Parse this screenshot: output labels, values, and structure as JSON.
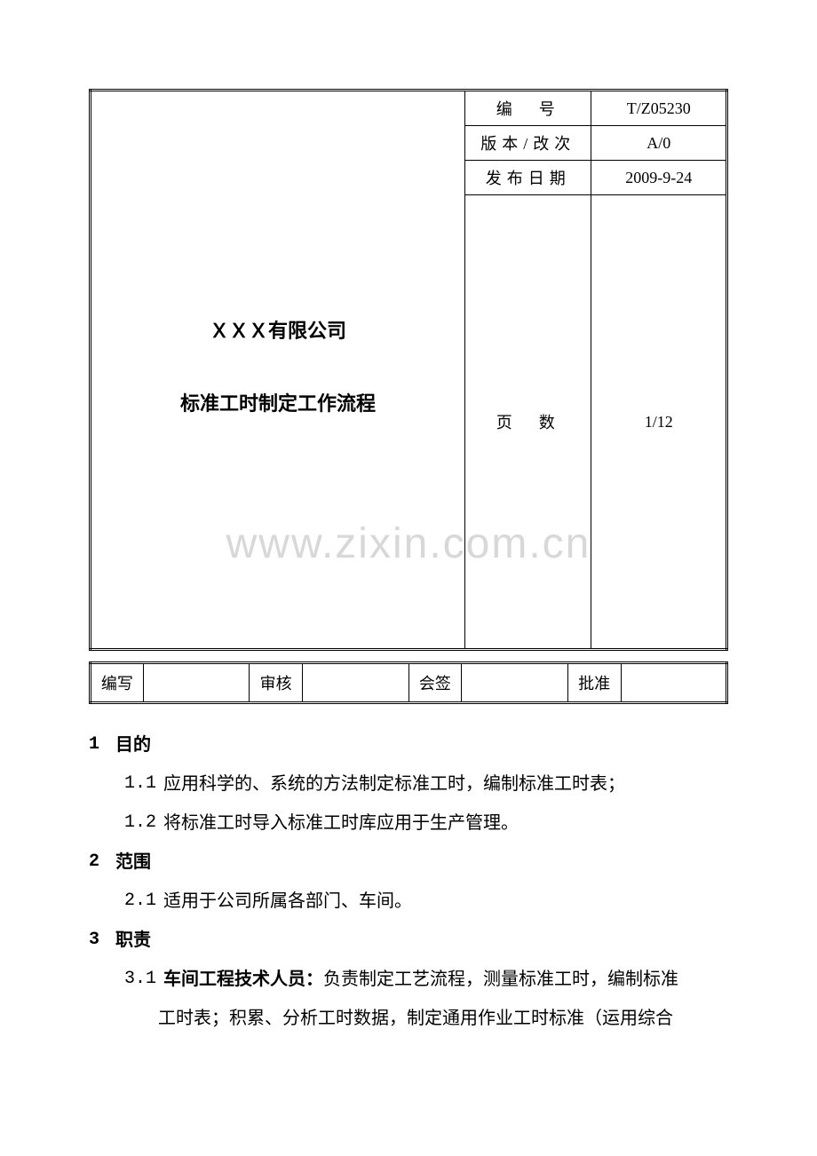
{
  "watermark": "www.zixin.com.cn",
  "header_table": {
    "company": "ＸＸＸ有限公司",
    "title": "标准工时制定工作流程",
    "rows": [
      {
        "label": "编　号",
        "value": "T/Z05230"
      },
      {
        "label": "版本/改次",
        "value": "A/0"
      },
      {
        "label": "发布日期",
        "value": "2009-9-24"
      },
      {
        "label": "页　数",
        "value": "1/12"
      }
    ]
  },
  "signature_table": {
    "cells": [
      {
        "label": "编写",
        "value": ""
      },
      {
        "label": "审核",
        "value": ""
      },
      {
        "label": "会签",
        "value": ""
      },
      {
        "label": "批准",
        "value": ""
      }
    ]
  },
  "sections": [
    {
      "num": "1",
      "heading": "目的",
      "items": [
        {
          "num": "1.1",
          "text": "应用科学的、系统的方法制定标准工时，编制标准工时表；"
        },
        {
          "num": "1.2",
          "text": "将标准工时导入标准工时库应用于生产管理。"
        }
      ]
    },
    {
      "num": "2",
      "heading": "范围",
      "items": [
        {
          "num": "2.1",
          "text": "适用于公司所属各部门、车间。"
        }
      ]
    },
    {
      "num": "3",
      "heading": "职责",
      "items": [
        {
          "num": "3.1",
          "bold_prefix": "车间工程技术人员：",
          "text": "负责制定工艺流程，测量标准工时，编制标准",
          "cont": "工时表；积累、分析工时数据，制定通用作业工时标准（运用综合"
        }
      ]
    }
  ]
}
